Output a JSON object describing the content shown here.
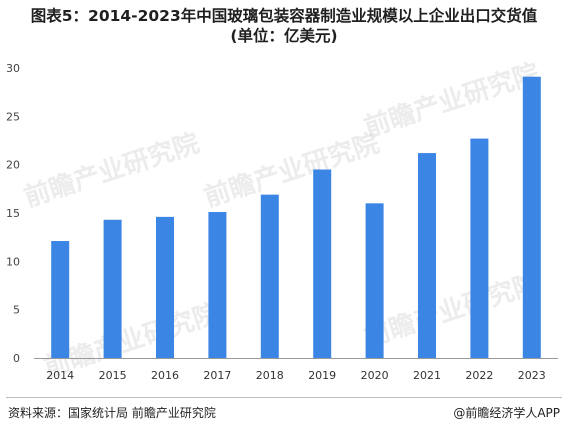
{
  "chart_data": {
    "type": "bar",
    "title_line1": "图表5：2014-2023年中国玻璃包装容器制造业规模以上企业出口交货值",
    "title_line2": "(单位：亿美元)",
    "categories": [
      "2014",
      "2015",
      "2016",
      "2017",
      "2018",
      "2019",
      "2020",
      "2021",
      "2022",
      "2023"
    ],
    "values": [
      12.1,
      14.3,
      14.6,
      15.1,
      16.9,
      19.5,
      16.0,
      21.2,
      22.7,
      29.1
    ],
    "ylim": [
      0,
      30
    ],
    "yticks": [
      "0",
      "5",
      "10",
      "15",
      "20",
      "25",
      "30"
    ],
    "bar_color": "#3b86e4",
    "grid": false,
    "legend": "none"
  },
  "footer": {
    "source": "资料来源：国家统计局 前瞻产业研究院",
    "credit": "@前瞻经济学人APP"
  },
  "watermark": "前瞻产业研究院"
}
